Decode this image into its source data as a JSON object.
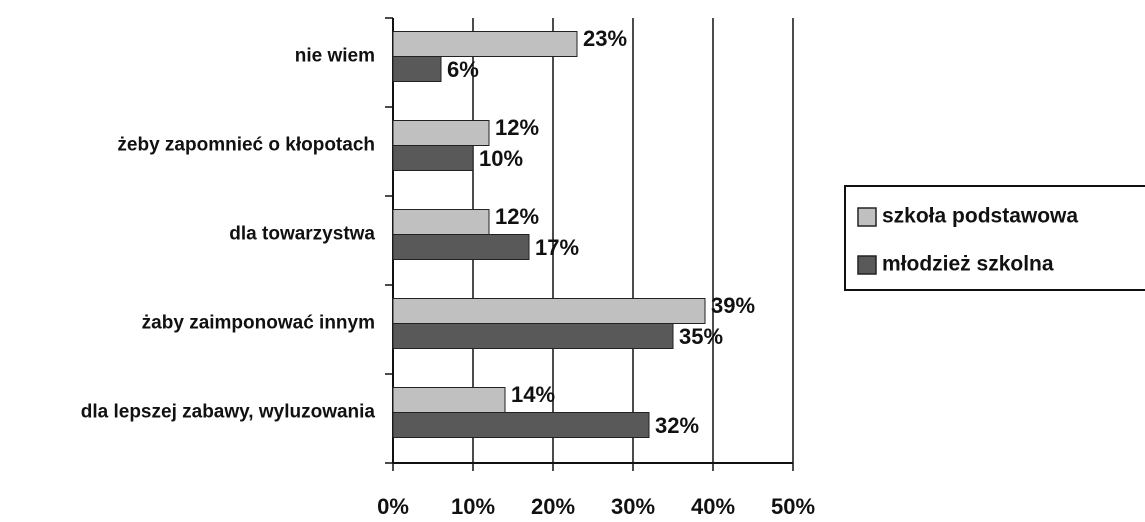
{
  "chart_data": {
    "type": "bar",
    "orientation": "horizontal",
    "categories": [
      "nie wiem",
      "żeby zapomnieć o kłopotach",
      "dla towarzystwa",
      "żaby zaimponować innym",
      "dla lepszej zabawy, wyluzowania"
    ],
    "series": [
      {
        "name": "szkoła podstawowa",
        "color": "#c0c0c0",
        "values": [
          23,
          12,
          12,
          39,
          14
        ],
        "value_labels": [
          "23%",
          "12%",
          "12%",
          "39%",
          "14%"
        ]
      },
      {
        "name": "młodzież szkolna",
        "color": "#595959",
        "values": [
          6,
          10,
          17,
          35,
          32
        ],
        "value_labels": [
          "6%",
          "10%",
          "17%",
          "35%",
          "32%"
        ]
      }
    ],
    "xlim": [
      0,
      50
    ],
    "xticks": [
      {
        "value": 0,
        "label": "0%"
      },
      {
        "value": 10,
        "label": "10%"
      },
      {
        "value": 20,
        "label": "20%"
      },
      {
        "value": 30,
        "label": "30%"
      },
      {
        "value": 40,
        "label": "40%"
      },
      {
        "value": 50,
        "label": "50%"
      }
    ],
    "grid": true,
    "legend": "right"
  }
}
